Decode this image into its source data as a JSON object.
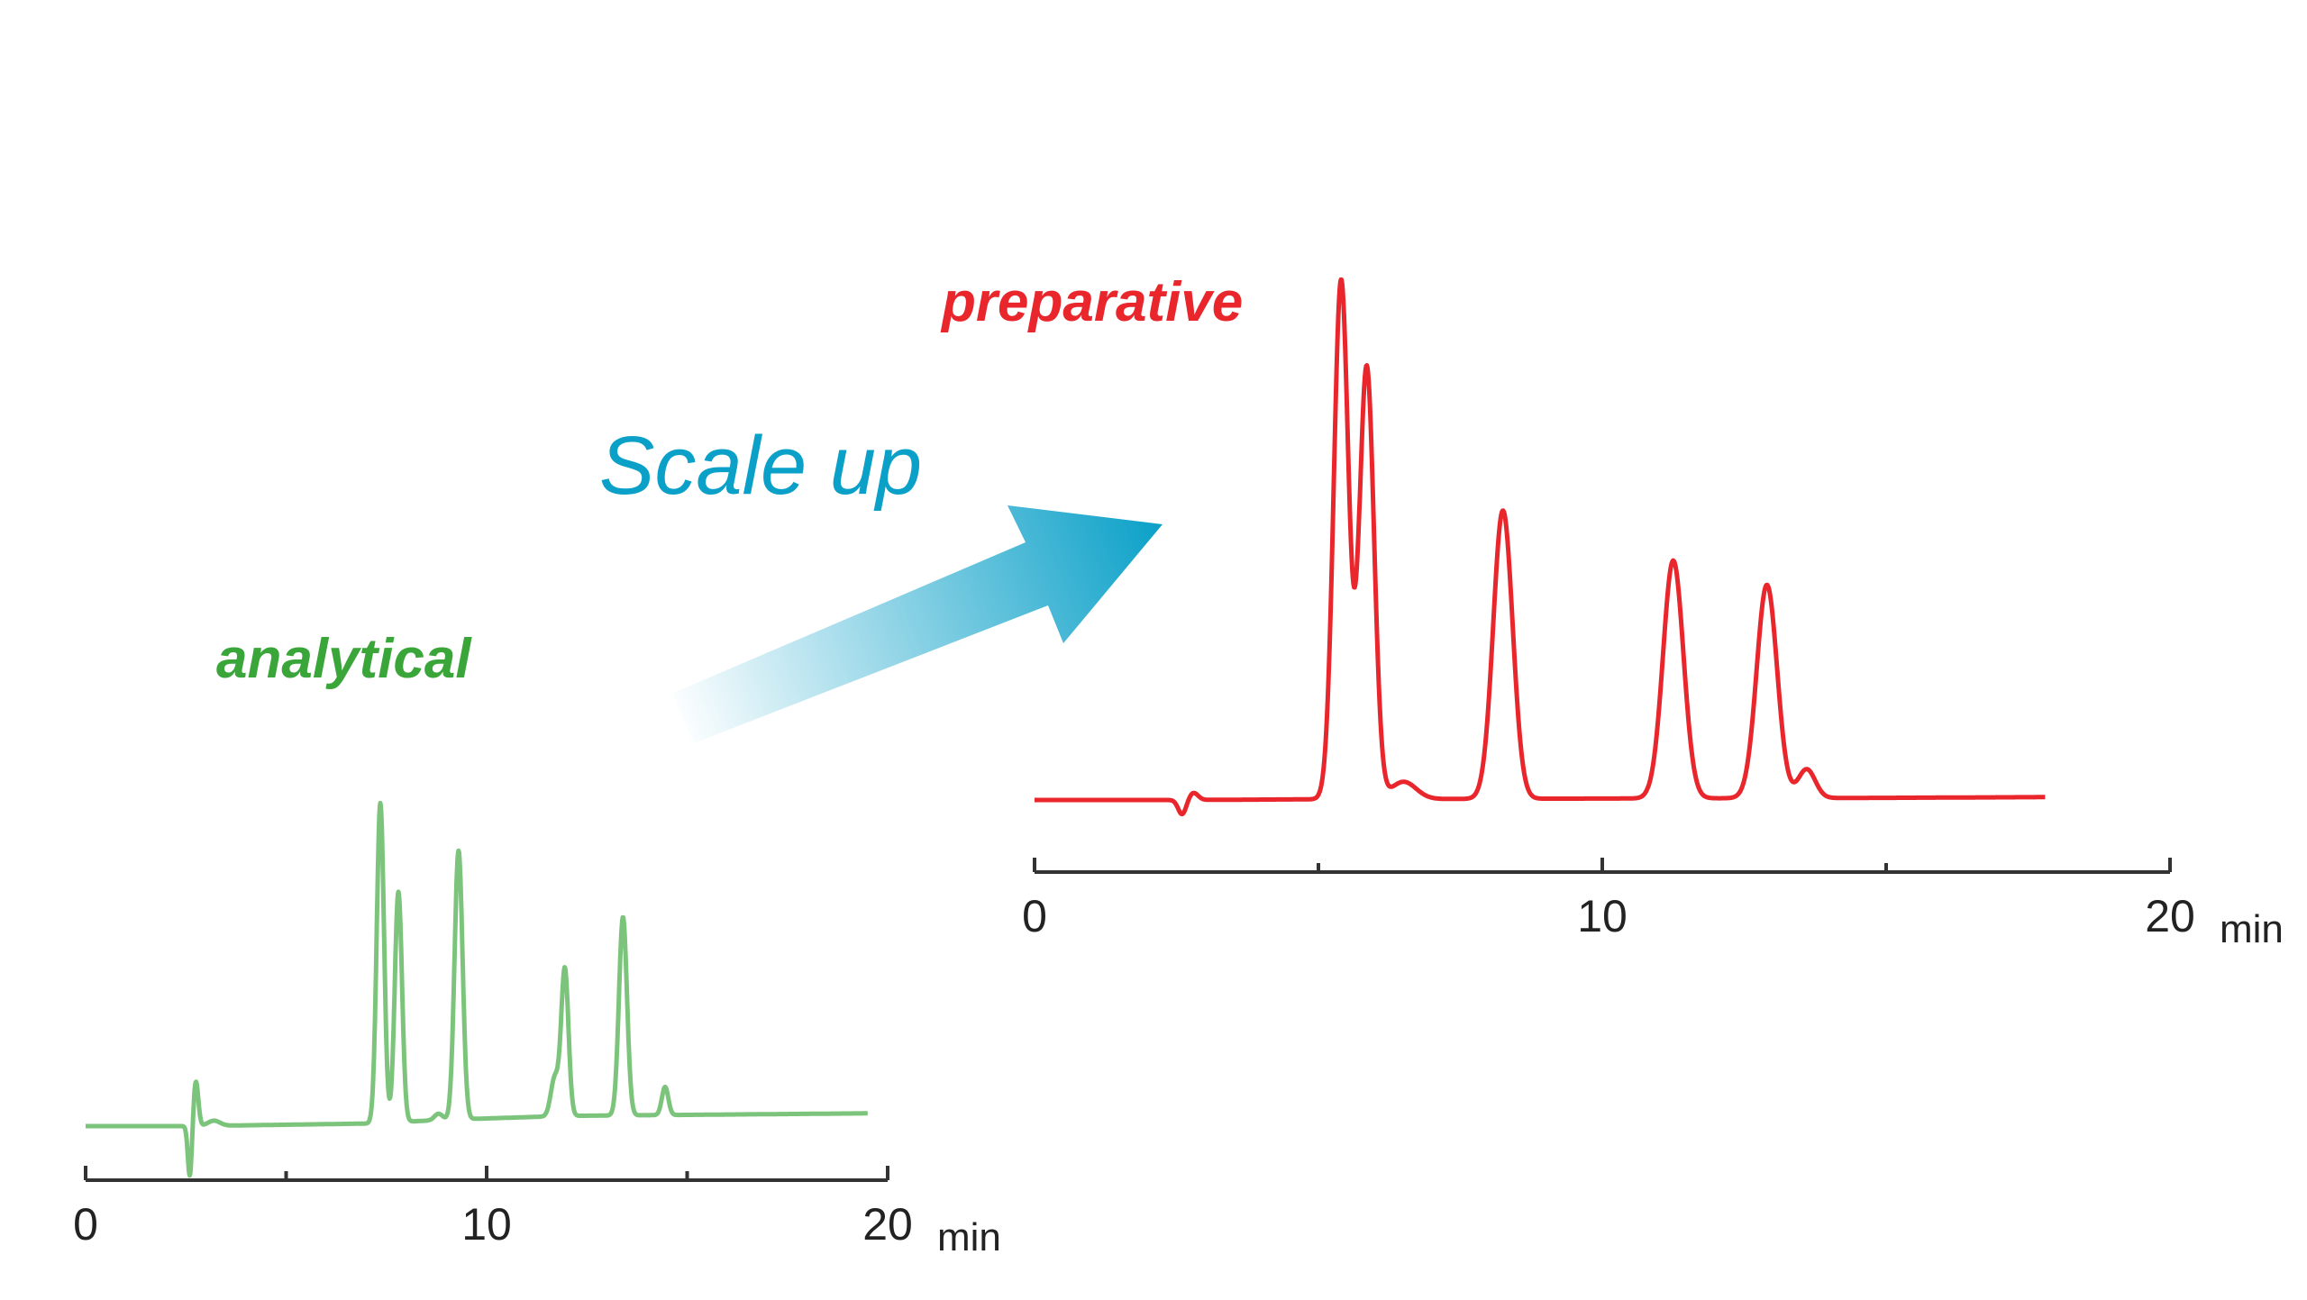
{
  "labels": {
    "analytical": "analytical",
    "preparative": "preparative",
    "scale_up": "Scale up"
  },
  "colors": {
    "analytical": "#5cb85c",
    "preparative": "#e8262c",
    "arrow": "#0aa0c8",
    "axis": "#333333"
  },
  "chart_data": [
    {
      "type": "line",
      "name": "analytical",
      "xlabel": "min",
      "xlim": [
        0,
        20
      ],
      "ticks": [
        "0",
        "10",
        "20"
      ],
      "baseline": [
        [
          0,
          0
        ],
        [
          2.6,
          0
        ],
        [
          7.0,
          0.2
        ],
        [
          9.0,
          0.5
        ],
        [
          12.0,
          0.8
        ],
        [
          19.5,
          1.0
        ]
      ],
      "peaks": [
        {
          "t": 2.75,
          "h": 3.5,
          "w": 0.06
        },
        {
          "t": 2.6,
          "h": -4.0,
          "w": 0.05
        },
        {
          "t": 3.2,
          "h": 0.4,
          "w": 0.15
        },
        {
          "t": 7.35,
          "h": 25.0,
          "w": 0.09
        },
        {
          "t": 7.8,
          "h": 18.0,
          "w": 0.09
        },
        {
          "t": 8.8,
          "h": 0.5,
          "w": 0.1
        },
        {
          "t": 9.3,
          "h": 21.0,
          "w": 0.1
        },
        {
          "t": 11.7,
          "h": 3.0,
          "w": 0.1
        },
        {
          "t": 11.95,
          "h": 11.5,
          "w": 0.09
        },
        {
          "t": 13.4,
          "h": 15.5,
          "w": 0.1
        },
        {
          "t": 14.45,
          "h": 2.2,
          "w": 0.08
        }
      ]
    },
    {
      "type": "line",
      "name": "preparative",
      "xlabel": "min",
      "xlim": [
        0,
        20
      ],
      "ticks": [
        "0",
        "10",
        "20"
      ],
      "baseline": [
        [
          0,
          0
        ],
        [
          2.6,
          0
        ],
        [
          5.0,
          0.05
        ],
        [
          10.0,
          0.1
        ],
        [
          15.0,
          0.15
        ],
        [
          17.8,
          0.2
        ]
      ],
      "peaks": [
        {
          "t": 2.6,
          "h": -1.0,
          "w": 0.07
        },
        {
          "t": 2.8,
          "h": 0.5,
          "w": 0.08
        },
        {
          "t": 5.4,
          "h": 36.0,
          "w": 0.13
        },
        {
          "t": 5.85,
          "h": 30.0,
          "w": 0.13
        },
        {
          "t": 6.5,
          "h": 1.2,
          "w": 0.22
        },
        {
          "t": 8.25,
          "h": 20.0,
          "w": 0.17
        },
        {
          "t": 11.25,
          "h": 16.5,
          "w": 0.18
        },
        {
          "t": 12.9,
          "h": 14.8,
          "w": 0.18
        },
        {
          "t": 13.6,
          "h": 2.0,
          "w": 0.15
        }
      ]
    }
  ]
}
